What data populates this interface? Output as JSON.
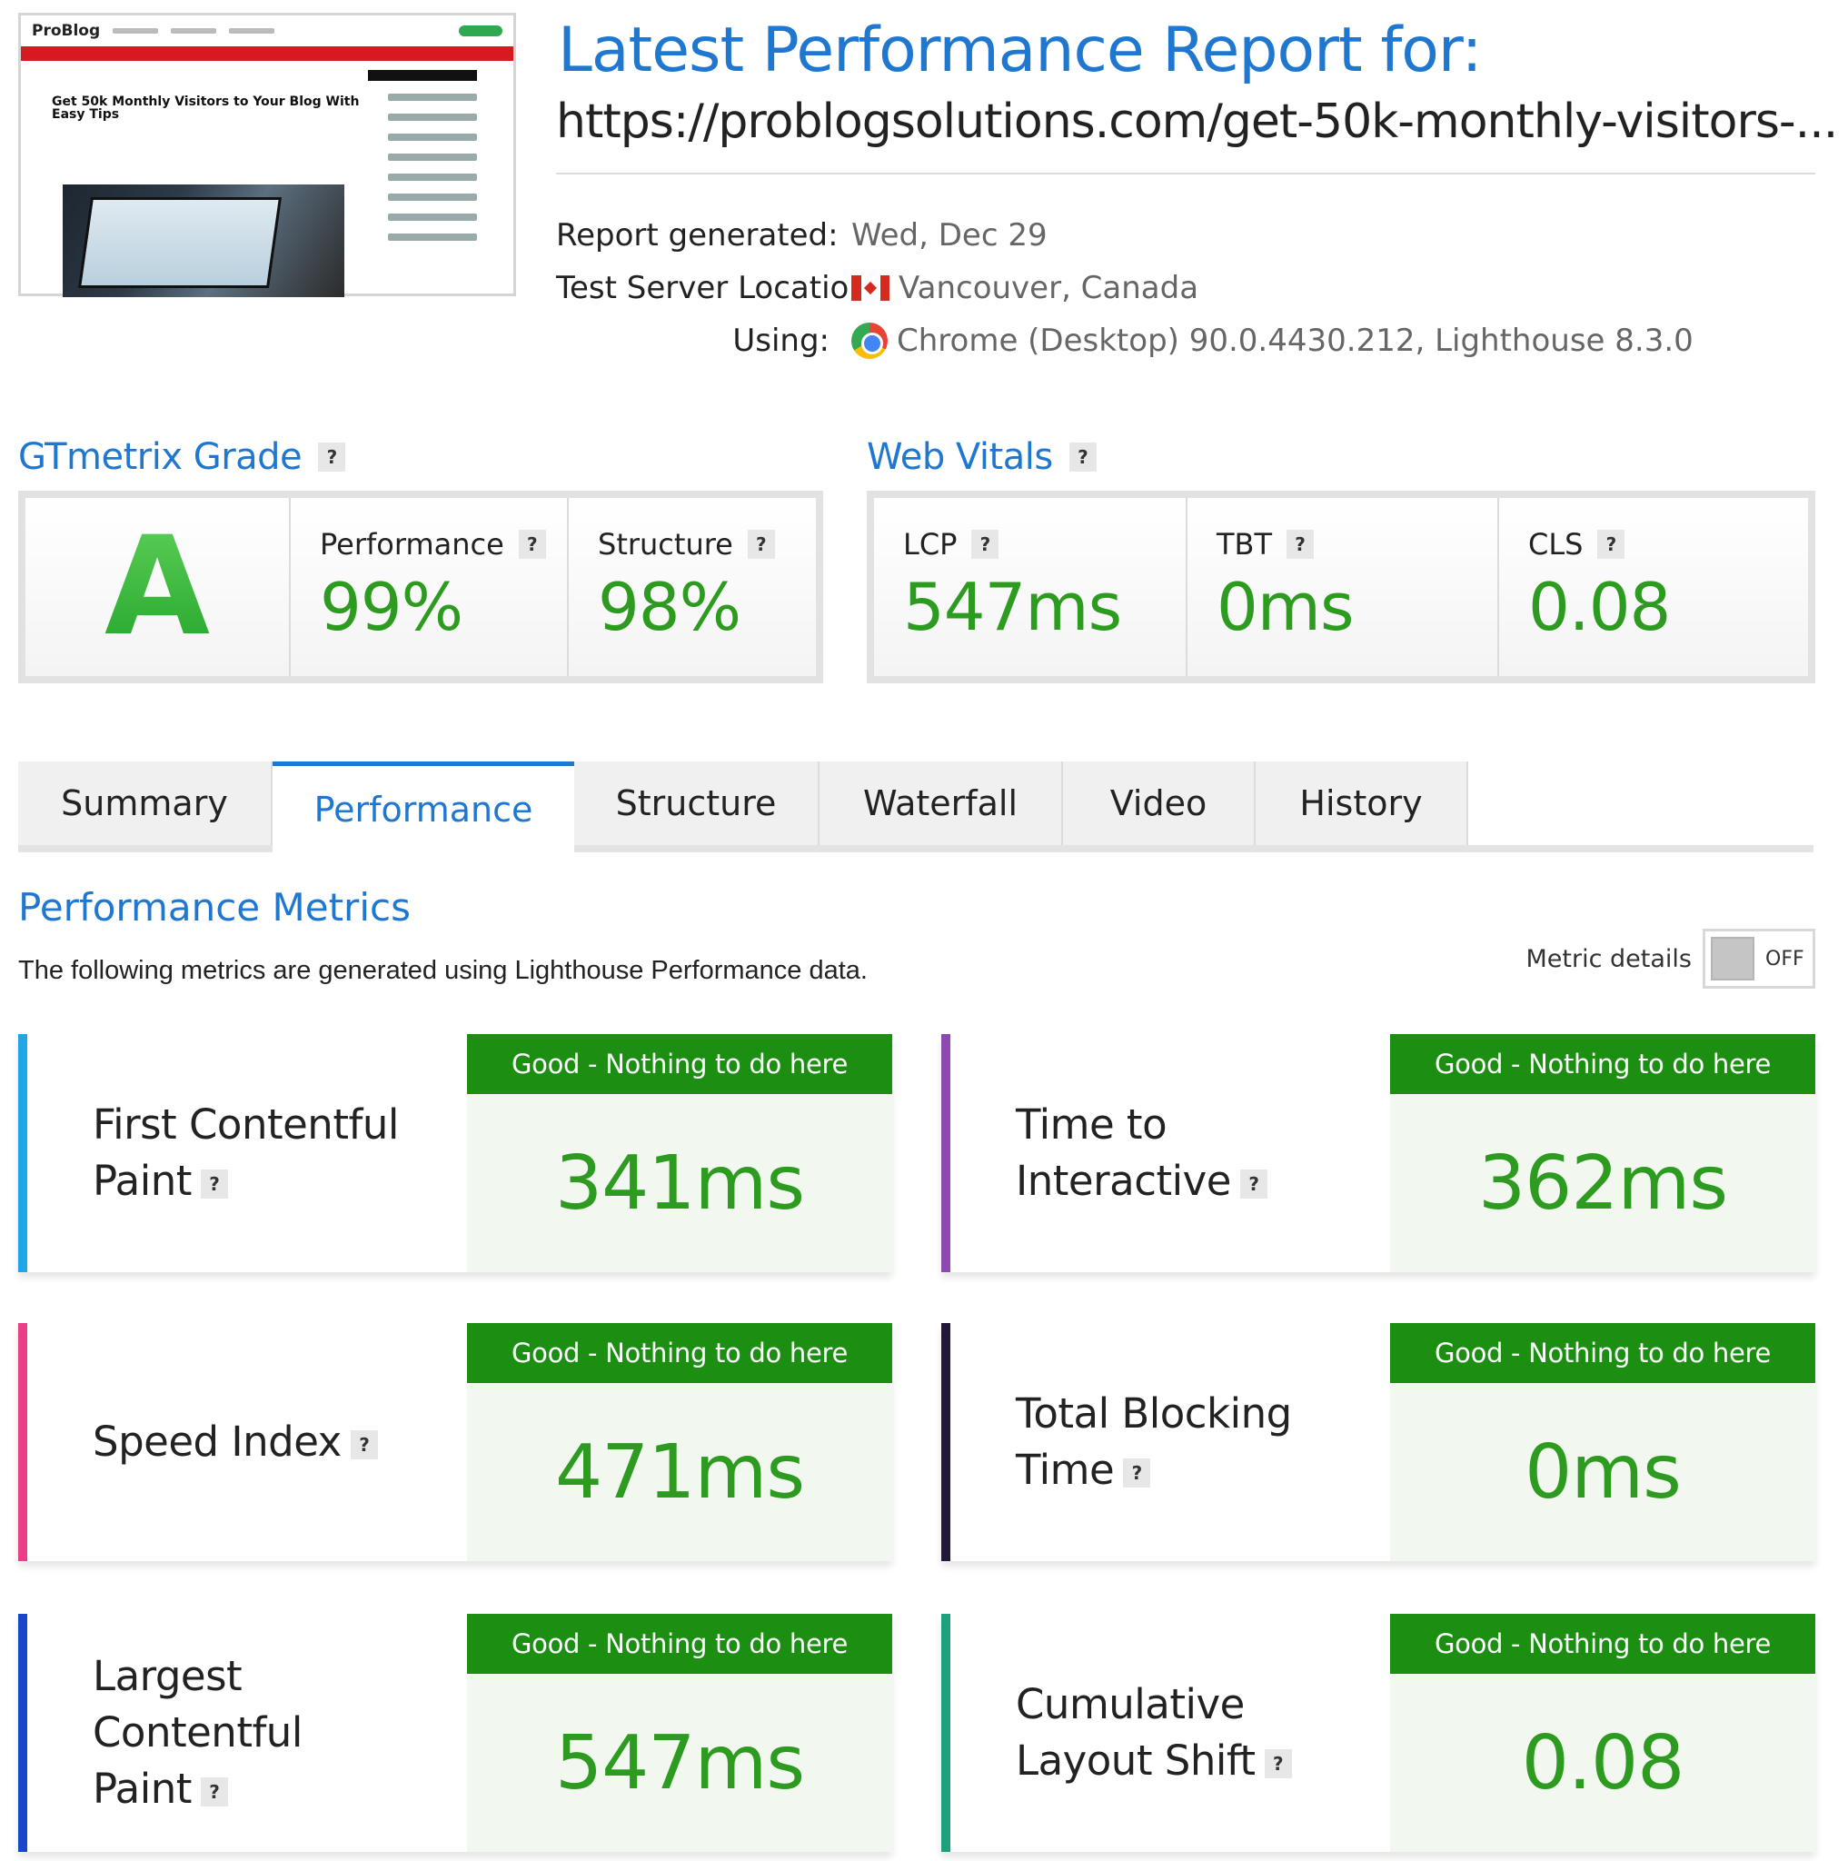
{
  "thumbnail": {
    "logo_main": "ProBlog",
    "logo_accent": "",
    "headline": "Get 50k Monthly Visitors to Your Blog With Easy Tips"
  },
  "header": {
    "title": "Latest Performance Report for:",
    "url": "https://problogsolutions.com/get-50k-monthly-visitors-...",
    "report_generated_label": "Report generated:",
    "report_generated_value": "Wed, Dec 29",
    "server_location_label": "Test Server Location:",
    "server_location_value": "Vancouver, Canada",
    "using_label": "Using:",
    "using_value": "Chrome (Desktop) 90.0.4430.212, Lighthouse 8.3.0"
  },
  "grade": {
    "heading": "GTmetrix Grade",
    "letter": "A",
    "performance_label": "Performance",
    "performance_value": "99%",
    "structure_label": "Structure",
    "structure_value": "98%"
  },
  "web_vitals": {
    "heading": "Web Vitals",
    "items": [
      {
        "label": "LCP",
        "value": "547ms"
      },
      {
        "label": "TBT",
        "value": "0ms"
      },
      {
        "label": "CLS",
        "value": "0.08"
      }
    ]
  },
  "tabs": [
    {
      "label": "Summary"
    },
    {
      "label": "Performance",
      "active": true
    },
    {
      "label": "Structure"
    },
    {
      "label": "Waterfall"
    },
    {
      "label": "Video"
    },
    {
      "label": "History"
    }
  ],
  "performance_metrics": {
    "title": "Performance Metrics",
    "subtitle": "The following metrics are generated using Lighthouse Performance data.",
    "toggle_label": "Metric details",
    "toggle_state": "OFF",
    "status_text": "Good - Nothing to do here",
    "cards": [
      {
        "line1": "First Contentful",
        "line2": "Paint",
        "value": "341ms",
        "color": "#1ea6e6"
      },
      {
        "line1": "Time to",
        "line2": "Interactive",
        "value": "362ms",
        "color": "#8d49b0"
      },
      {
        "line1": "",
        "line2": "Speed Index",
        "value": "471ms",
        "color": "#ea3f86"
      },
      {
        "line1": "Total Blocking",
        "line2": "Time",
        "value": "0ms",
        "color": "#23173a"
      },
      {
        "line1": "Largest Contentful",
        "line2": "Paint",
        "value": "547ms",
        "color": "#1a46c8"
      },
      {
        "line1": "Cumulative",
        "line2": "Layout Shift",
        "value": "0.08",
        "color": "#1ea07c"
      }
    ]
  },
  "colors": {
    "accent_blue": "#1f77d0",
    "good_green": "#1c8f13",
    "value_green": "#2c9b1f"
  }
}
